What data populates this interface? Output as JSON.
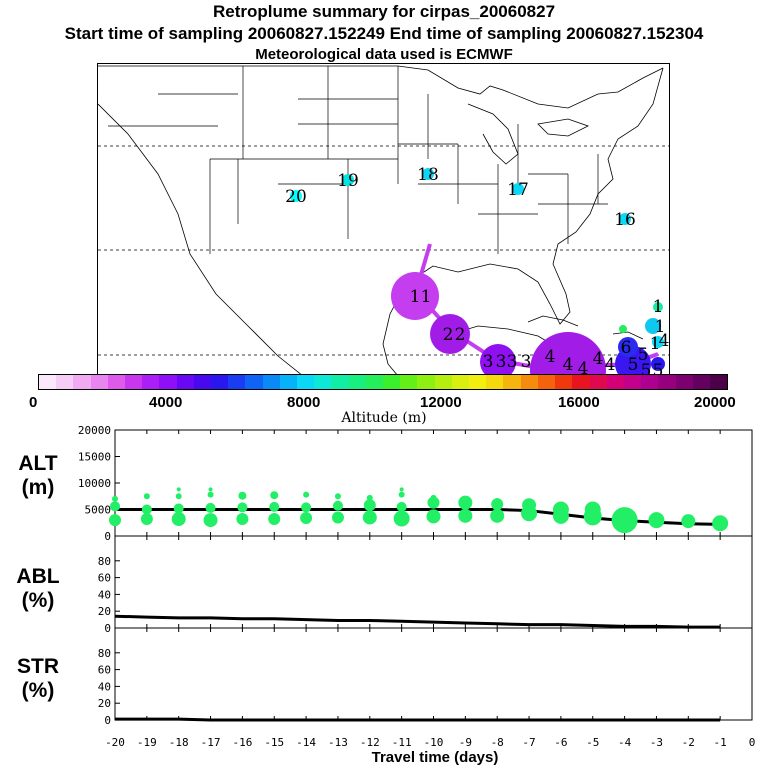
{
  "header": {
    "title": "Retroplume summary for cirpas_20060827",
    "sampling": "Start time of sampling 20060827.152249     End time of sampling 20060827.152304",
    "met": "Meteorological data used is ECMWF"
  },
  "colorbar": {
    "label": "Altitude (m)",
    "ticks": [
      "0",
      "4000",
      "8000",
      "12000",
      "16000",
      "20000"
    ],
    "colors": [
      "#fbe8fb",
      "#f6cdf6",
      "#f1aaf1",
      "#e985ef",
      "#dd5aea",
      "#c836ee",
      "#ab1ff6",
      "#8e0ff8",
      "#6a07f5",
      "#4809f0",
      "#2a17f0",
      "#1a3cf2",
      "#0f63f5",
      "#0a8af7",
      "#06b3f8",
      "#0ad8f6",
      "#0ee8d6",
      "#12eda6",
      "#18ef7e",
      "#24ef5a",
      "#3cef2e",
      "#63ef17",
      "#8fef12",
      "#b5ef10",
      "#d8ef10",
      "#f2ee0f",
      "#f5d90e",
      "#f5b40e",
      "#f58c0e",
      "#f5620e",
      "#f0380f",
      "#e81520",
      "#e00950",
      "#d40078",
      "#c2008c",
      "#ae0090",
      "#96007f",
      "#7c0070",
      "#630060",
      "#4d0048"
    ]
  },
  "map": {
    "labels": [
      "20",
      "19",
      "18",
      "17",
      "16",
      "1",
      "1",
      "2",
      "2",
      "3",
      "3",
      "3",
      "3",
      "4",
      "4",
      "4",
      "4",
      "4",
      "5",
      "5",
      "5",
      "5",
      "6",
      "1",
      "1",
      "1",
      "4"
    ],
    "label_colors": [
      "#00ffff",
      "#00e4e4",
      "#00ffff",
      "#00ffff",
      "#00ffff",
      "#c43ef0",
      "#c43ef0",
      "#a21ce8",
      "#a21ce8",
      "#8f10f0",
      "#8f10f0",
      "#8f10f0",
      "#8f10f0",
      "#a21ce8",
      "#a21ce8",
      "#a21ce8",
      "#a21ce8",
      "#a21ce8",
      "#3a16f0",
      "#3a16f0",
      "#3a16f0",
      "#3a16f0",
      "#3a16f0",
      "#00e4a0",
      "#00e4a0",
      "#00e4a0",
      "#0ec8f0"
    ]
  },
  "chart_data": [
    {
      "type": "scatter",
      "panel": "ALT",
      "ylabel": "ALT\n(m)",
      "ylabel_lines": [
        "ALT",
        "(m)"
      ],
      "xlabel": "Travel time (days)",
      "ylim": [
        0,
        20000
      ],
      "yticks": [
        "0",
        "5000",
        "10000",
        "15000",
        "20000"
      ],
      "xlim": [
        -20,
        0
      ],
      "xticks": [
        "-20",
        "-19",
        "-18",
        "-17",
        "-16",
        "-15",
        "-14",
        "-13",
        "-12",
        "-11",
        "-10",
        "-9",
        "-8",
        "-7",
        "-6",
        "-5",
        "-4",
        "-3",
        "-2",
        "-1",
        "0"
      ],
      "series": [
        {
          "name": "mean altitude",
          "x": [
            -20,
            -19,
            -18,
            -17,
            -16,
            -15,
            -14,
            -13,
            -12,
            -11,
            -10,
            -9,
            -8,
            -7,
            -6,
            -5,
            -4,
            -3,
            -2,
            -1
          ],
          "y": [
            5000,
            5000,
            5000,
            5000,
            5000,
            5000,
            5000,
            5000,
            5000,
            5000,
            5000,
            5000,
            5000,
            4800,
            4100,
            3400,
            2900,
            2600,
            2300,
            2200
          ]
        },
        {
          "name": "plume altitude (low)",
          "x": [
            -20,
            -19,
            -18,
            -17,
            -16,
            -15,
            -14,
            -13,
            -12,
            -11,
            -10,
            -9,
            -8,
            -7,
            -6,
            -5,
            -4,
            -3,
            -2,
            -1
          ],
          "y": [
            3000,
            3200,
            3200,
            3000,
            3200,
            3200,
            3400,
            3500,
            3500,
            3300,
            3700,
            3800,
            3800,
            4300,
            3800,
            3700,
            3000,
            3000,
            2800,
            2400
          ],
          "size": [
            6,
            6,
            7,
            7,
            6,
            6,
            6,
            6,
            7,
            8,
            7,
            7,
            7,
            8,
            8,
            9,
            13,
            8,
            7,
            8
          ]
        },
        {
          "name": "plume altitude (mid)",
          "x": [
            -20,
            -19,
            -18,
            -17,
            -16,
            -15,
            -14,
            -13,
            -12,
            -11,
            -10,
            -9,
            -8,
            -7,
            -6,
            -5,
            -4
          ],
          "y": [
            5600,
            5000,
            5200,
            5300,
            5400,
            5500,
            5400,
            5700,
            5800,
            5500,
            6300,
            6300,
            6000,
            5800,
            5000,
            5000,
            4000
          ],
          "size": [
            5,
            5,
            5,
            5,
            5,
            5,
            5,
            5,
            6,
            5,
            6,
            7,
            6,
            7,
            8,
            8,
            6
          ]
        },
        {
          "name": "plume altitude (high)",
          "x": [
            -20,
            -19,
            -18,
            -17,
            -16,
            -15,
            -14,
            -13,
            -12,
            -11,
            -10,
            -9,
            -8,
            -7,
            -6,
            -5,
            -4
          ],
          "y": [
            7000,
            7500,
            7500,
            7800,
            7600,
            7700,
            7800,
            7500,
            7200,
            7800,
            7200,
            6800,
            6600,
            6000,
            5800,
            5500,
            4500
          ],
          "size": [
            3,
            3,
            3,
            3,
            4,
            4,
            3,
            3,
            3,
            3,
            3,
            3,
            3,
            3,
            3,
            3,
            3
          ]
        },
        {
          "name": "plume altitude (top)",
          "x": [
            -18,
            -17,
            -11
          ],
          "y": [
            8800,
            8800,
            8800
          ],
          "size": [
            2,
            2,
            2
          ]
        }
      ]
    },
    {
      "type": "line",
      "panel": "ABL",
      "ylabel": "ABL\n(%)",
      "ylabel_lines": [
        "ABL",
        "(%)"
      ],
      "ylim": [
        0,
        100
      ],
      "yticks": [
        "0",
        "20",
        "40",
        "60",
        "80"
      ],
      "xlim": [
        -20,
        0
      ],
      "series": [
        {
          "name": "ABL fraction",
          "x": [
            -20,
            -19,
            -18,
            -17,
            -16,
            -15,
            -14,
            -13,
            -12,
            -11,
            -10,
            -9,
            -8,
            -7,
            -6,
            -5,
            -4,
            -3,
            -2,
            -1
          ],
          "y": [
            14,
            13,
            12,
            12,
            11,
            11,
            10,
            9,
            9,
            8,
            7,
            6,
            5,
            4,
            4,
            3,
            2,
            2,
            1,
            1
          ]
        }
      ]
    },
    {
      "type": "line",
      "panel": "STR",
      "ylabel": "STR\n(%)",
      "ylabel_lines": [
        "STR",
        "(%)"
      ],
      "ylim": [
        0,
        100
      ],
      "yticks": [
        "0",
        "20",
        "40",
        "60",
        "80"
      ],
      "xlim": [
        -20,
        0
      ],
      "series": [
        {
          "name": "STR fraction",
          "x": [
            -20,
            -19,
            -18,
            -17,
            -16,
            -15,
            -14,
            -13,
            -12,
            -11,
            -10,
            -9,
            -8,
            -7,
            -6,
            -5,
            -4,
            -3,
            -2,
            -1
          ],
          "y": [
            1,
            1,
            1,
            0,
            0,
            0,
            0,
            0,
            0,
            0,
            0,
            0,
            0,
            0,
            0,
            0,
            0,
            0,
            0,
            0
          ]
        }
      ]
    }
  ]
}
